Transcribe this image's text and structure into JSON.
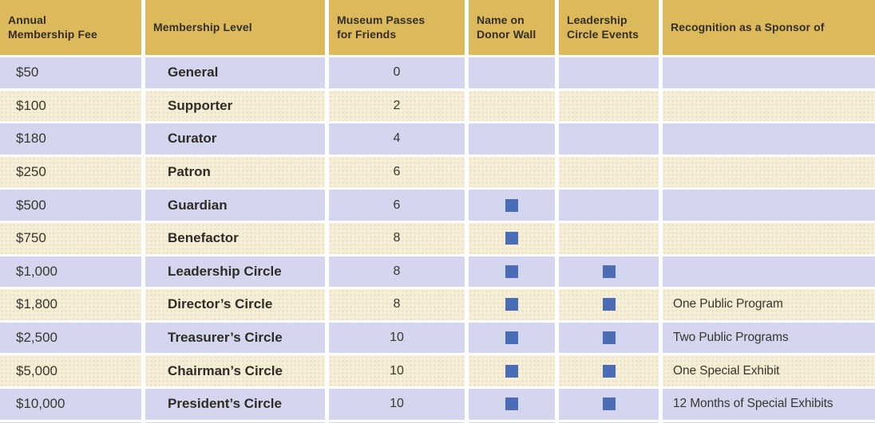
{
  "colors": {
    "header_bg": "#DCBA5C",
    "row_lavender_bg": "#D3D6EE",
    "row_cream_bg": "#F6EFD7",
    "check_square": "#4A6DB5",
    "text": "#35302A",
    "gutter": "#FFFFFF"
  },
  "table": {
    "columns": [
      {
        "label": "Annual\nMembership Fee"
      },
      {
        "label": "Membership Level"
      },
      {
        "label": "Museum Passes\nfor Friends"
      },
      {
        "label": "Name on\nDonor Wall"
      },
      {
        "label": "Leadership\nCircle Events"
      },
      {
        "label": "Recognition as a Sponsor of"
      }
    ],
    "rows": [
      {
        "fee": "$50",
        "level": "General",
        "passes": "0",
        "donor_wall": false,
        "leadership_events": false,
        "recognition": ""
      },
      {
        "fee": "$100",
        "level": "Supporter",
        "passes": "2",
        "donor_wall": false,
        "leadership_events": false,
        "recognition": ""
      },
      {
        "fee": "$180",
        "level": "Curator",
        "passes": "4",
        "donor_wall": false,
        "leadership_events": false,
        "recognition": ""
      },
      {
        "fee": "$250",
        "level": "Patron",
        "passes": "6",
        "donor_wall": false,
        "leadership_events": false,
        "recognition": ""
      },
      {
        "fee": "$500",
        "level": "Guardian",
        "passes": "6",
        "donor_wall": true,
        "leadership_events": false,
        "recognition": ""
      },
      {
        "fee": "$750",
        "level": "Benefactor",
        "passes": "8",
        "donor_wall": true,
        "leadership_events": false,
        "recognition": ""
      },
      {
        "fee": "$1,000",
        "level": "Leadership Circle",
        "passes": "8",
        "donor_wall": true,
        "leadership_events": true,
        "recognition": ""
      },
      {
        "fee": "$1,800",
        "level": "Director’s Circle",
        "passes": "8",
        "donor_wall": true,
        "leadership_events": true,
        "recognition": "One Public Program"
      },
      {
        "fee": "$2,500",
        "level": "Treasurer’s Circle",
        "passes": "10",
        "donor_wall": true,
        "leadership_events": true,
        "recognition": "Two Public Programs"
      },
      {
        "fee": "$5,000",
        "level": "Chairman’s Circle",
        "passes": "10",
        "donor_wall": true,
        "leadership_events": true,
        "recognition": "One Special Exhibit"
      },
      {
        "fee": "$10,000",
        "level": "President’s Circle",
        "passes": "10",
        "donor_wall": true,
        "leadership_events": true,
        "recognition": "12 Months of Special Exhibits"
      }
    ]
  }
}
